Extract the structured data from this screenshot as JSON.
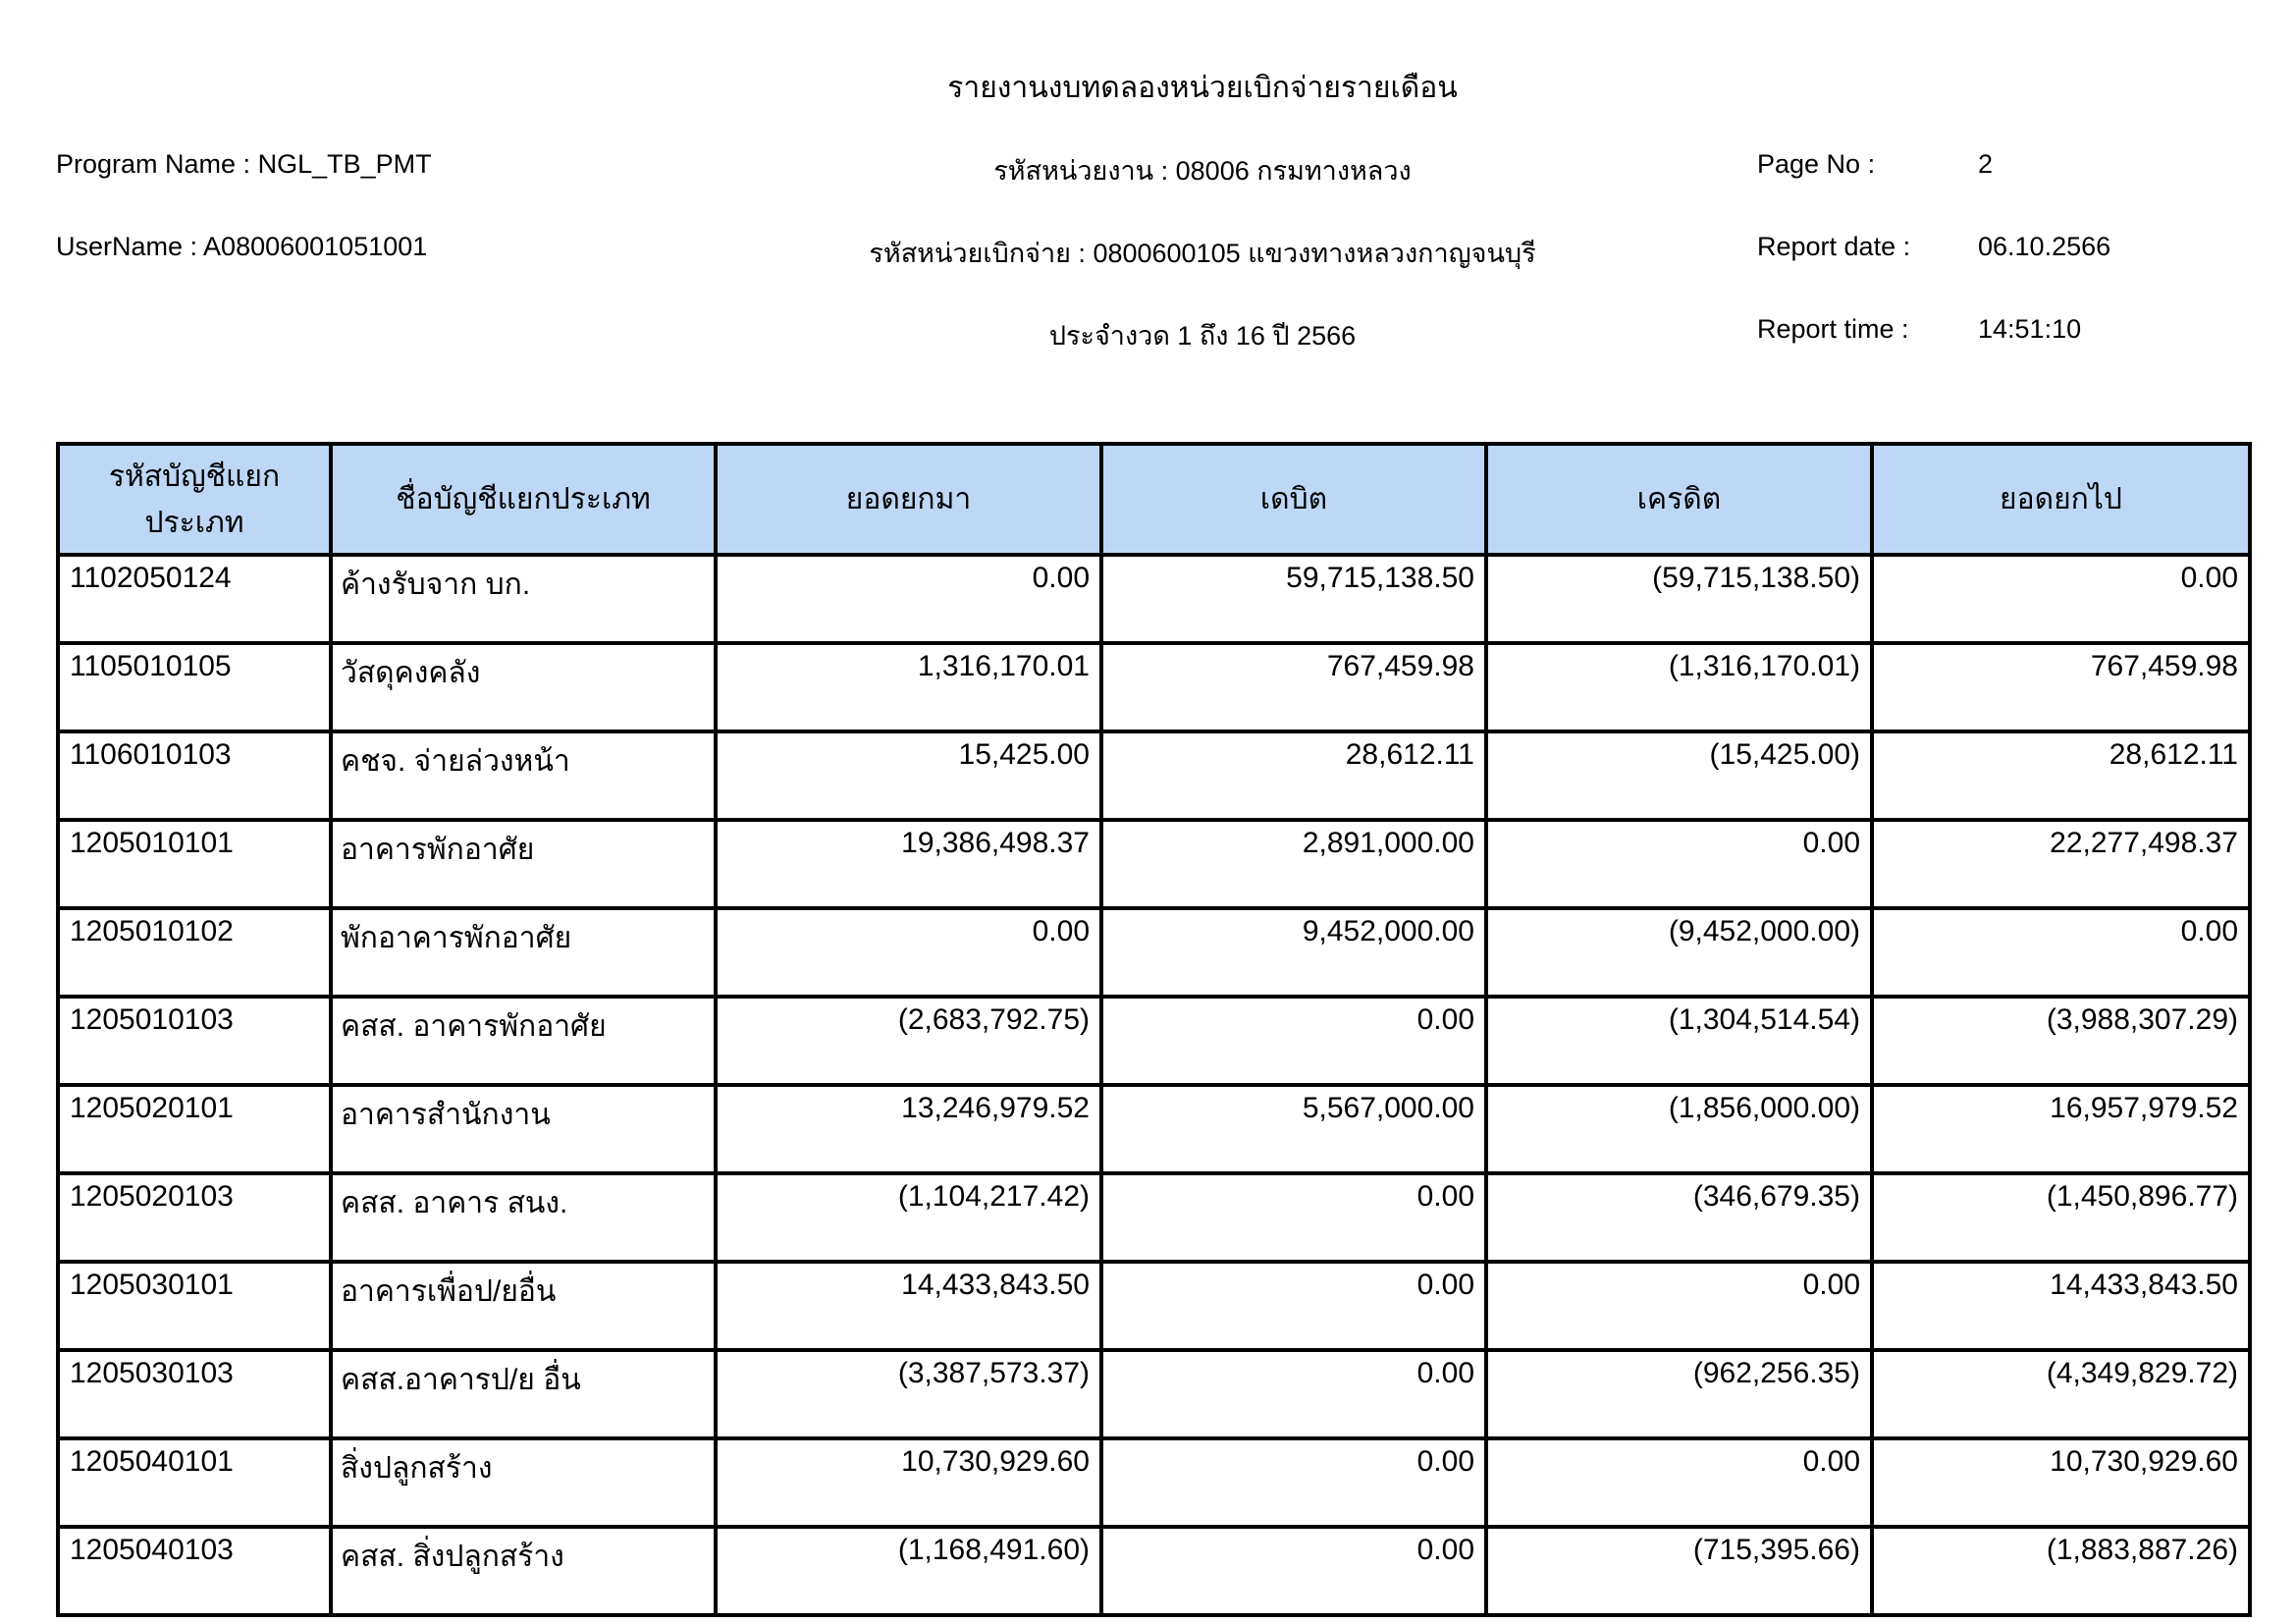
{
  "title": "รายงานงบทดลองหน่วยเบิกจ่ายรายเดือน",
  "meta": {
    "program_label": "Program Name :",
    "program_value": "NGL_TB_PMT",
    "username_label": "UserName :",
    "username_value": "A08006001051001",
    "agency_label": "รหัสหน่วยงาน :",
    "agency_value": "08006 กรมทางหลวง",
    "disbursement_label": "รหัสหน่วยเบิกจ่าย :",
    "disbursement_value": "0800600105 แขวงทางหลวงกาญจนบุรี",
    "period_line": "ประจำงวด 1 ถึง 16 ปี 2566",
    "page_no_label": "Page No :",
    "page_no_value": "2",
    "report_date_label": "Report date :",
    "report_date_value": "06.10.2566",
    "report_time_label": "Report time :",
    "report_time_value": "14:51:10"
  },
  "table": {
    "header_bg": "#BDD8F6",
    "border_color": "#000000",
    "columns": [
      "รหัสบัญชีแยกประเภท",
      "ชื่อบัญชีแยกประเภท",
      "ยอดยกมา",
      "เดบิต",
      "เครดิต",
      "ยอดยกไป"
    ],
    "rows": [
      [
        "1102050124",
        "ค้างรับจาก บก.",
        "0.00",
        "59,715,138.50",
        "(59,715,138.50)",
        "0.00"
      ],
      [
        "1105010105",
        "วัสดุคงคลัง",
        "1,316,170.01",
        "767,459.98",
        "(1,316,170.01)",
        "767,459.98"
      ],
      [
        "1106010103",
        "คชจ. จ่ายล่วงหน้า",
        "15,425.00",
        "28,612.11",
        "(15,425.00)",
        "28,612.11"
      ],
      [
        "1205010101",
        "อาคารพักอาศัย",
        "19,386,498.37",
        "2,891,000.00",
        "0.00",
        "22,277,498.37"
      ],
      [
        "1205010102",
        "พักอาคารพักอาศัย",
        "0.00",
        "9,452,000.00",
        "(9,452,000.00)",
        "0.00"
      ],
      [
        "1205010103",
        "คสส. อาคารพักอาศัย",
        "(2,683,792.75)",
        "0.00",
        "(1,304,514.54)",
        "(3,988,307.29)"
      ],
      [
        "1205020101",
        "อาคารสำนักงาน",
        "13,246,979.52",
        "5,567,000.00",
        "(1,856,000.00)",
        "16,957,979.52"
      ],
      [
        "1205020103",
        "คสส. อาคาร สนง.",
        "(1,104,217.42)",
        "0.00",
        "(346,679.35)",
        "(1,450,896.77)"
      ],
      [
        "1205030101",
        "อาคารเพื่อป/ยอื่น",
        "14,433,843.50",
        "0.00",
        "0.00",
        "14,433,843.50"
      ],
      [
        "1205030103",
        "คสส.อาคารป/ย อื่น",
        "(3,387,573.37)",
        "0.00",
        "(962,256.35)",
        "(4,349,829.72)"
      ],
      [
        "1205040101",
        "สิ่งปลูกสร้าง",
        "10,730,929.60",
        "0.00",
        "0.00",
        "10,730,929.60"
      ],
      [
        "1205040103",
        "คสส. สิ่งปลูกสร้าง",
        "(1,168,491.60)",
        "0.00",
        "(715,395.66)",
        "(1,883,887.26)"
      ]
    ]
  }
}
